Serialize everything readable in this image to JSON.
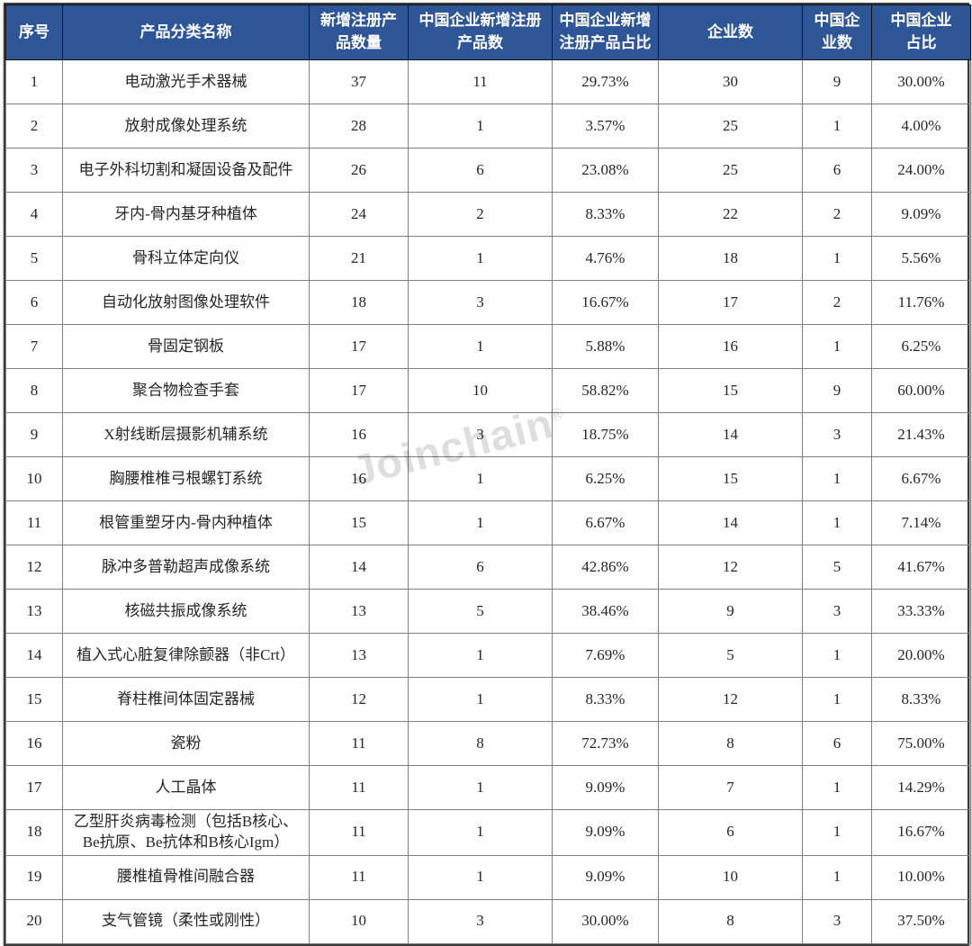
{
  "colors": {
    "header_bg": "#2e5696",
    "header_text": "#ffffff",
    "body_text": "#262626",
    "grid_line": "#7f7f7f",
    "header_line": "#111111",
    "outer_border": "#3a3a3a",
    "page_bg": "#ffffff"
  },
  "watermark": {
    "text": "Joinchain",
    "registered_mark": "®"
  },
  "table": {
    "columns": [
      {
        "key": "index",
        "label": "序号"
      },
      {
        "key": "product-category-name",
        "label": "产品分类名称"
      },
      {
        "key": "new-registered-products",
        "label": "新增注册产\n品数量"
      },
      {
        "key": "cn-enterprise-new-registered-products",
        "label": "中国企业新增注册\n产品数"
      },
      {
        "key": "cn-enterprise-new-registered-share",
        "label": "中国企业新增\n注册产品占比"
      },
      {
        "key": "enterprise-count",
        "label": "企业数"
      },
      {
        "key": "cn-enterprise-count",
        "label": "中国企\n业数"
      },
      {
        "key": "cn-enterprise-share",
        "label": "中国企业\n占比"
      }
    ],
    "rows": [
      [
        "1",
        "电动激光手术器械",
        "37",
        "11",
        "29.73%",
        "30",
        "9",
        "30.00%"
      ],
      [
        "2",
        "放射成像处理系统",
        "28",
        "1",
        "3.57%",
        "25",
        "1",
        "4.00%"
      ],
      [
        "3",
        "电子外科切割和凝固设备及配件",
        "26",
        "6",
        "23.08%",
        "25",
        "6",
        "24.00%"
      ],
      [
        "4",
        "牙内-骨内基牙种植体",
        "24",
        "2",
        "8.33%",
        "22",
        "2",
        "9.09%"
      ],
      [
        "5",
        "骨科立体定向仪",
        "21",
        "1",
        "4.76%",
        "18",
        "1",
        "5.56%"
      ],
      [
        "6",
        "自动化放射图像处理软件",
        "18",
        "3",
        "16.67%",
        "17",
        "2",
        "11.76%"
      ],
      [
        "7",
        "骨固定钢板",
        "17",
        "1",
        "5.88%",
        "16",
        "1",
        "6.25%"
      ],
      [
        "8",
        "聚合物检查手套",
        "17",
        "10",
        "58.82%",
        "15",
        "9",
        "60.00%"
      ],
      [
        "9",
        "X射线断层摄影机辅系统",
        "16",
        "3",
        "18.75%",
        "14",
        "3",
        "21.43%"
      ],
      [
        "10",
        "胸腰椎椎弓根螺钉系统",
        "16",
        "1",
        "6.25%",
        "15",
        "1",
        "6.67%"
      ],
      [
        "11",
        "根管重塑牙内-骨内种植体",
        "15",
        "1",
        "6.67%",
        "14",
        "1",
        "7.14%"
      ],
      [
        "12",
        "脉冲多普勒超声成像系统",
        "14",
        "6",
        "42.86%",
        "12",
        "5",
        "41.67%"
      ],
      [
        "13",
        "核磁共振成像系统",
        "13",
        "5",
        "38.46%",
        "9",
        "3",
        "33.33%"
      ],
      [
        "14",
        "植入式心脏复律除颤器（非Crt）",
        "13",
        "1",
        "7.69%",
        "5",
        "1",
        "20.00%"
      ],
      [
        "15",
        "脊柱椎间体固定器械",
        "12",
        "1",
        "8.33%",
        "12",
        "1",
        "8.33%"
      ],
      [
        "16",
        "瓷粉",
        "11",
        "8",
        "72.73%",
        "8",
        "6",
        "75.00%"
      ],
      [
        "17",
        "人工晶体",
        "11",
        "1",
        "9.09%",
        "7",
        "1",
        "14.29%"
      ],
      [
        "18",
        "乙型肝炎病毒检测（包括B核心、Be抗原、Be抗体和B核心Igm）",
        "11",
        "1",
        "9.09%",
        "6",
        "1",
        "16.67%"
      ],
      [
        "19",
        "腰椎植骨椎间融合器",
        "11",
        "1",
        "9.09%",
        "10",
        "1",
        "10.00%"
      ],
      [
        "20",
        "支气管镜（柔性或刚性）",
        "10",
        "3",
        "30.00%",
        "8",
        "3",
        "37.50%"
      ]
    ]
  }
}
